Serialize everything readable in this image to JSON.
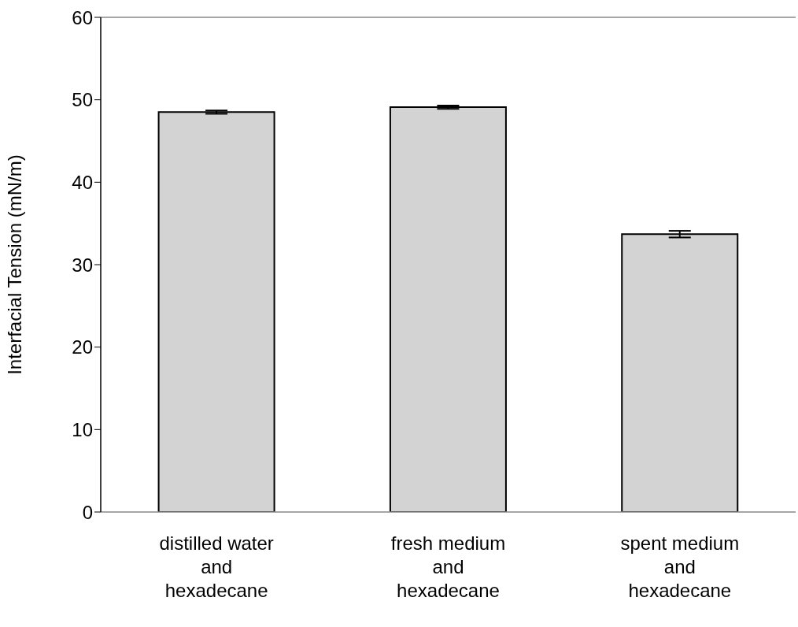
{
  "chart_data": {
    "type": "bar",
    "ylabel": "Interfacial Tension (mN/m)",
    "categories": [
      "distilled water\nand\nhexadecane",
      "fresh medium\nand\nhexadecane",
      "spent medium\nand\nhexadecane"
    ],
    "values": [
      48.5,
      49.1,
      33.7
    ],
    "errors": [
      0.2,
      0.2,
      0.4
    ],
    "color": "#d3d3d3",
    "ylim": [
      0,
      60
    ],
    "yticks": [
      0,
      10,
      20,
      30,
      40,
      50,
      60
    ],
    "grid": false
  }
}
